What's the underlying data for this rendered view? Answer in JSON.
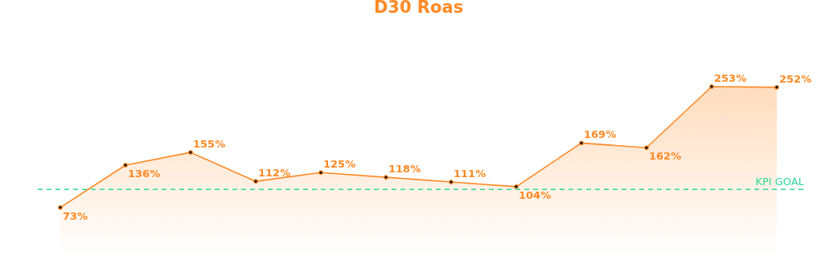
{
  "chart_data": {
    "type": "area",
    "title": "D30 Roas",
    "categories": [
      null,
      null,
      null,
      null,
      null,
      null,
      null,
      null,
      null,
      null,
      null,
      null
    ],
    "series": [
      {
        "color": "#ff8a25",
        "values": [
          73,
          136,
          155,
          112,
          125,
          118,
          111,
          104,
          169,
          162,
          253,
          252
        ],
        "value_labels": [
          "73%",
          "136%",
          "155%",
          "112%",
          "125%",
          "118%",
          "111%",
          "104%",
          "169%",
          "162%",
          "253%",
          "252%"
        ]
      }
    ],
    "marker": "circle",
    "ref_lines": [
      {
        "axis": "y",
        "value": 100,
        "label": "KPI GOAL",
        "color": "#2fd89a",
        "line_style": "dashed"
      }
    ]
  }
}
